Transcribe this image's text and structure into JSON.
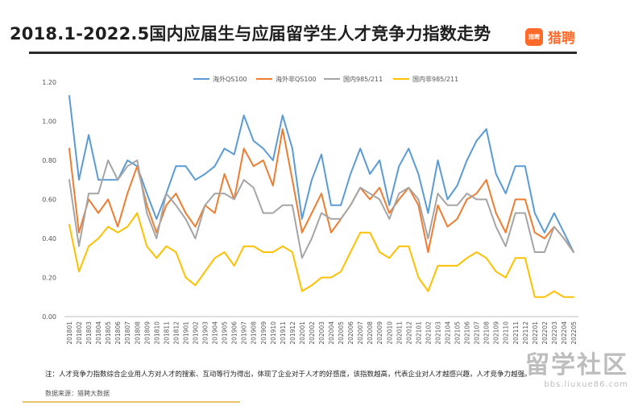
{
  "title": "2018.1-2022.5国内应届生与应届留学生人才竞争力指数走势",
  "brand": {
    "logo_text": "猎聘",
    "name": "猎聘"
  },
  "footnote": "注：人才竞争力指数综合企业用人方对人才的搜索、互动等行为得出，体现了企业对于人才的好感度，该指数越高，代表企业对人才越感兴趣，人才竞争力越强。",
  "source": "数据来源：猎聘大数据",
  "watermark": {
    "main": "留学社区",
    "sub": "bbs.liuxue86.com"
  },
  "chart_data": {
    "type": "line",
    "title": "2018.1-2022.5国内应届生与应届留学生人才竞争力指数走势",
    "xlabel": "",
    "ylabel": "",
    "ylim": [
      0,
      1.2
    ],
    "yticks": [
      "0.00",
      "0.20",
      "0.40",
      "0.60",
      "0.80",
      "1.00",
      "1.20"
    ],
    "grid": false,
    "legend_position": "top",
    "categories": [
      "201801",
      "201802",
      "201803",
      "201804",
      "201805",
      "201806",
      "201807",
      "201808",
      "201809",
      "201810",
      "201811",
      "201812",
      "201901",
      "201902",
      "201903",
      "201904",
      "201905",
      "201906",
      "201907",
      "201908",
      "201909",
      "201910",
      "201911",
      "201912",
      "202001",
      "202002",
      "202003",
      "202004",
      "202005",
      "202006",
      "202007",
      "202008",
      "202009",
      "202010",
      "202011",
      "202012",
      "202101",
      "202102",
      "202103",
      "202104",
      "202105",
      "202106",
      "202107",
      "202108",
      "202109",
      "202110",
      "202111",
      "202112",
      "202201",
      "202202",
      "202203",
      "202204",
      "202205"
    ],
    "series": [
      {
        "name": "海外QS100",
        "color": "#5b9bd5",
        "values": [
          1.13,
          0.7,
          0.93,
          0.7,
          0.7,
          0.7,
          0.8,
          0.77,
          0.63,
          0.5,
          0.63,
          0.77,
          0.77,
          0.7,
          0.73,
          0.77,
          0.86,
          0.83,
          1.03,
          0.9,
          0.86,
          0.8,
          1.03,
          0.86,
          0.5,
          0.7,
          0.83,
          0.57,
          0.57,
          0.73,
          0.86,
          0.73,
          0.8,
          0.57,
          0.77,
          0.86,
          0.73,
          0.53,
          0.8,
          0.6,
          0.67,
          0.8,
          0.9,
          0.96,
          0.73,
          0.63,
          0.77,
          0.77,
          0.53,
          0.43,
          0.53,
          0.43,
          0.33
        ]
      },
      {
        "name": "海外非QS100",
        "color": "#ed7d31",
        "values": [
          0.86,
          0.43,
          0.6,
          0.53,
          0.6,
          0.46,
          0.63,
          0.77,
          0.57,
          0.43,
          0.57,
          0.63,
          0.53,
          0.46,
          0.57,
          0.53,
          0.73,
          0.6,
          0.86,
          0.77,
          0.8,
          0.67,
          0.96,
          0.7,
          0.43,
          0.53,
          0.63,
          0.43,
          0.5,
          0.57,
          0.66,
          0.6,
          0.66,
          0.53,
          0.6,
          0.66,
          0.57,
          0.33,
          0.57,
          0.46,
          0.5,
          0.6,
          0.63,
          0.7,
          0.53,
          0.43,
          0.6,
          0.6,
          0.43,
          0.4,
          0.46,
          0.4,
          0.33
        ]
      },
      {
        "name": "国内985/211",
        "color": "#a5a5a5",
        "values": [
          0.7,
          0.36,
          0.63,
          0.63,
          0.8,
          0.7,
          0.77,
          0.8,
          0.53,
          0.4,
          0.63,
          0.57,
          0.5,
          0.4,
          0.57,
          0.63,
          0.63,
          0.6,
          0.7,
          0.66,
          0.53,
          0.53,
          0.57,
          0.57,
          0.3,
          0.4,
          0.53,
          0.5,
          0.5,
          0.57,
          0.66,
          0.63,
          0.6,
          0.5,
          0.63,
          0.66,
          0.6,
          0.4,
          0.63,
          0.57,
          0.57,
          0.63,
          0.6,
          0.6,
          0.46,
          0.36,
          0.53,
          0.53,
          0.33,
          0.33,
          0.46,
          0.4,
          0.33
        ]
      },
      {
        "name": "国内非985/211",
        "color": "#ffc000",
        "values": [
          0.47,
          0.23,
          0.36,
          0.4,
          0.46,
          0.43,
          0.46,
          0.53,
          0.36,
          0.3,
          0.36,
          0.33,
          0.2,
          0.16,
          0.23,
          0.3,
          0.33,
          0.26,
          0.36,
          0.36,
          0.33,
          0.33,
          0.36,
          0.33,
          0.13,
          0.16,
          0.2,
          0.2,
          0.23,
          0.33,
          0.43,
          0.43,
          0.33,
          0.3,
          0.36,
          0.36,
          0.2,
          0.13,
          0.26,
          0.26,
          0.26,
          0.3,
          0.33,
          0.3,
          0.23,
          0.2,
          0.3,
          0.3,
          0.1,
          0.1,
          0.13,
          0.1,
          0.1
        ]
      }
    ]
  }
}
